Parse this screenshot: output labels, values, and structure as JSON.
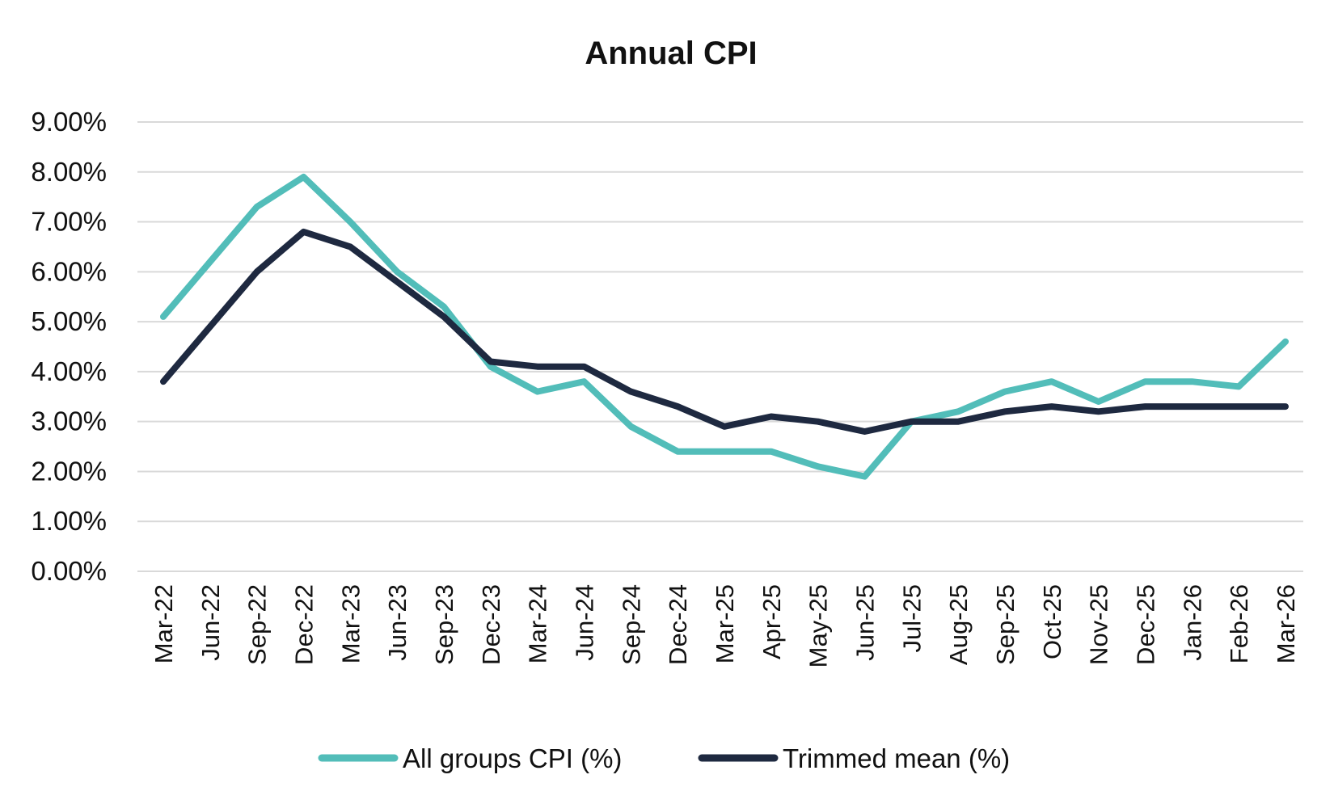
{
  "chart_data": {
    "type": "line",
    "title": "Annual CPI",
    "xlabel": "",
    "ylabel": "",
    "y_ticks": [
      "0.00%",
      "1.00%",
      "2.00%",
      "3.00%",
      "4.00%",
      "5.00%",
      "6.00%",
      "7.00%",
      "8.00%",
      "9.00%"
    ],
    "ylim": [
      0,
      9
    ],
    "grid": true,
    "legend_position": "bottom",
    "categories": [
      "Mar-22",
      "Jun-22",
      "Sep-22",
      "Dec-22",
      "Mar-23",
      "Jun-23",
      "Sep-23",
      "Dec-23",
      "Mar-24",
      "Jun-24",
      "Sep-24",
      "Dec-24",
      "Mar-25",
      "Apr-25",
      "May-25",
      "Jun-25",
      "Jul-25",
      "Aug-25",
      "Sep-25",
      "Oct-25",
      "Nov-25",
      "Dec-25",
      "Jan-26",
      "Feb-26",
      "Mar-26"
    ],
    "series": [
      {
        "name": "All groups CPI (%)",
        "color": "#52BDB9",
        "values": [
          5.1,
          6.2,
          7.3,
          7.9,
          7.0,
          6.0,
          5.3,
          4.1,
          3.6,
          3.8,
          2.9,
          2.4,
          2.4,
          2.4,
          2.1,
          1.9,
          3.0,
          3.2,
          3.6,
          3.8,
          3.4,
          3.8,
          3.8,
          3.7,
          4.6
        ]
      },
      {
        "name": "Trimmed mean (%)",
        "color": "#1E2940",
        "values": [
          3.8,
          4.9,
          6.0,
          6.8,
          6.5,
          5.8,
          5.1,
          4.2,
          4.1,
          4.1,
          3.6,
          3.3,
          2.9,
          3.1,
          3.0,
          2.8,
          3.0,
          3.0,
          3.2,
          3.3,
          3.2,
          3.3,
          3.3,
          3.3,
          3.3
        ]
      }
    ]
  }
}
